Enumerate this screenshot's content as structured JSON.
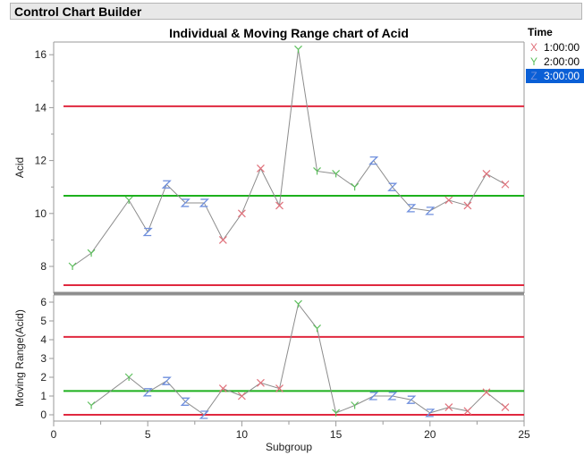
{
  "window": {
    "title": "Control Chart Builder"
  },
  "legend": {
    "title": "Time",
    "items": [
      {
        "label": "1:00:00",
        "marker": "X",
        "color": "#e0707a",
        "selected": false
      },
      {
        "label": "2:00:00",
        "marker": "Y",
        "color": "#5cbf5c",
        "selected": false
      },
      {
        "label": "3:00:00",
        "marker": "Z",
        "color": "#6f8fdd",
        "selected": true
      }
    ]
  },
  "colors": {
    "ucl_lcl": "#e0283f",
    "center": "#1db01d",
    "line": "#8c8c8c",
    "selected_bg": "#0a5fd6"
  },
  "chart_data": [
    {
      "type": "line",
      "title": "Individual & Moving Range chart of Acid",
      "xlabel": "Subgroup",
      "ylabel": "Acid",
      "xlim": [
        0,
        25
      ],
      "ylim": [
        6.7,
        16.5
      ],
      "yticks": [
        8,
        10,
        12,
        14,
        16
      ],
      "limits": {
        "UCL": 14.05,
        "CL": 10.67,
        "LCL": 7.29
      },
      "x": [
        1,
        2,
        4,
        5,
        6,
        7,
        8,
        9,
        10,
        11,
        12,
        13,
        14,
        15,
        16,
        17,
        18,
        19,
        20,
        21,
        22,
        23,
        24
      ],
      "values": [
        8.0,
        8.5,
        10.5,
        9.3,
        11.1,
        10.4,
        10.4,
        9.0,
        10.0,
        11.7,
        10.3,
        16.2,
        11.6,
        11.5,
        11.0,
        12.0,
        11.0,
        10.2,
        10.1,
        10.5,
        10.3,
        11.5,
        11.1
      ],
      "groups": [
        "2:00:00",
        "2:00:00",
        "2:00:00",
        "3:00:00",
        "3:00:00",
        "3:00:00",
        "3:00:00",
        "1:00:00",
        "1:00:00",
        "1:00:00",
        "1:00:00",
        "2:00:00",
        "2:00:00",
        "2:00:00",
        "2:00:00",
        "3:00:00",
        "3:00:00",
        "3:00:00",
        "3:00:00",
        "1:00:00",
        "1:00:00",
        "1:00:00",
        "1:00:00"
      ]
    },
    {
      "type": "line",
      "title": "",
      "xlabel": "Subgroup",
      "ylabel": "Moving Range(Acid)",
      "xlim": [
        0,
        25
      ],
      "ylim": [
        -0.35,
        6.35
      ],
      "yticks": [
        0,
        1,
        2,
        3,
        4,
        5,
        6
      ],
      "xticks": [
        0,
        5,
        10,
        15,
        20,
        25
      ],
      "limits": {
        "UCL": 4.15,
        "CL": 1.27,
        "LCL": 0
      },
      "x": [
        2,
        4,
        5,
        6,
        7,
        8,
        9,
        10,
        11,
        12,
        13,
        14,
        15,
        16,
        17,
        18,
        19,
        20,
        21,
        22,
        23,
        24
      ],
      "values": [
        0.5,
        2.0,
        1.2,
        1.8,
        0.7,
        0.0,
        1.4,
        1.0,
        1.7,
        1.4,
        5.9,
        4.6,
        0.1,
        0.5,
        1.0,
        1.0,
        0.8,
        0.1,
        0.4,
        0.2,
        1.2,
        0.4
      ],
      "groups": [
        "2:00:00",
        "2:00:00",
        "3:00:00",
        "3:00:00",
        "3:00:00",
        "3:00:00",
        "1:00:00",
        "1:00:00",
        "1:00:00",
        "1:00:00",
        "2:00:00",
        "2:00:00",
        "2:00:00",
        "2:00:00",
        "3:00:00",
        "3:00:00",
        "3:00:00",
        "3:00:00",
        "1:00:00",
        "1:00:00",
        "1:00:00",
        "1:00:00"
      ]
    }
  ]
}
